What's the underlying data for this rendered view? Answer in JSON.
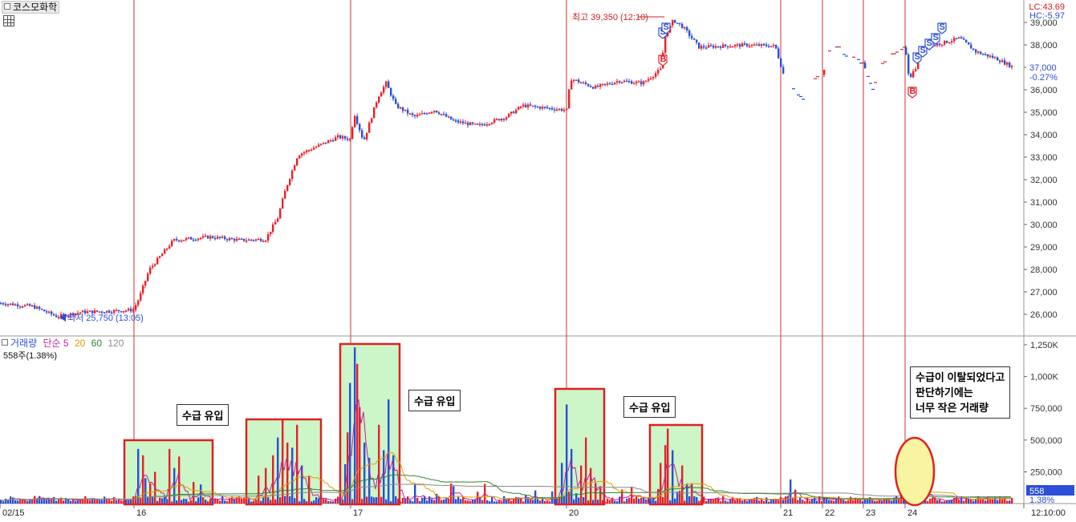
{
  "instrument": {
    "name": "코스모화학"
  },
  "price_axis": {
    "labels": [
      "39,000",
      "38,000",
      "37,000",
      "36,000",
      "35,000",
      "34,000",
      "33,000",
      "32,000",
      "31,000",
      "30,000",
      "29,000",
      "28,000",
      "27,000",
      "26,000"
    ],
    "current_price": "37,000",
    "change": "-0.27%",
    "lc": "LC:43.69",
    "hc": "HC:-5.97"
  },
  "volume_axis": {
    "labels": [
      "1,250K",
      "1,000K",
      "750,000",
      "500,000",
      "250,000"
    ],
    "current": "558",
    "percent": "1.38%"
  },
  "time_axis": [
    "02/15",
    "16",
    "17",
    "20",
    "21",
    "22",
    "23",
    "24",
    "12:10:00"
  ],
  "annotations": {
    "high": "최고 39,350 (12:10)",
    "low": "최저 25,750 (13:05)",
    "inflow_labels": [
      "수급 유입",
      "수급 유입",
      "수급 유입"
    ],
    "note_lines": [
      "수급이 이탈되었다고",
      "판단하기에는",
      "너무 작은 거래량"
    ],
    "sell_marker": "S",
    "buy_marker": "B"
  },
  "volume_legend": {
    "label": "거래량",
    "ma_type": "단순",
    "periods": [
      "5",
      "20",
      "60",
      "120"
    ],
    "sub": "558주(1.38%)"
  },
  "colors": {
    "up": "#e8202a",
    "down": "#2b4fd6",
    "session_line": "#c93030",
    "ma5": "#c0209a",
    "ma20": "#e0a000",
    "ma60": "#2a8a2a",
    "ma120": "#8a8a8a",
    "highlight_fill": "#ccf5c8",
    "highlight_border": "#e02020",
    "ellipse_fill": "#f8f4a0"
  },
  "chart_data": {
    "type": "candlestick",
    "title": "코스모화학",
    "price_range": [
      25400,
      39600
    ],
    "volume_range": [
      0,
      1300000
    ],
    "sessions": [
      "02/15",
      "16",
      "17",
      "20",
      "21",
      "22",
      "23",
      "24"
    ],
    "approx_closes_by_session": {
      "02/15": [
        26500,
        26400,
        26100,
        25800,
        26100,
        26200
      ],
      "16": [
        26700,
        28000,
        29300,
        29500,
        29400,
        29300,
        29500
      ],
      "17": [
        29800,
        31500,
        33000,
        33500,
        33900,
        34000
      ],
      "17b": [
        35000,
        36500,
        35500,
        35000,
        35200,
        34900,
        34500,
        34700,
        35200,
        35100
      ],
      "20": [
        36500,
        36100,
        36300,
        36400,
        36300,
        36800,
        38900,
        38200,
        38000,
        38000
      ],
      "24": [
        36500,
        37700,
        38100,
        38300,
        38100,
        37500,
        37200,
        37000
      ]
    },
    "high": 39350,
    "low": 25750,
    "last": 37000
  }
}
